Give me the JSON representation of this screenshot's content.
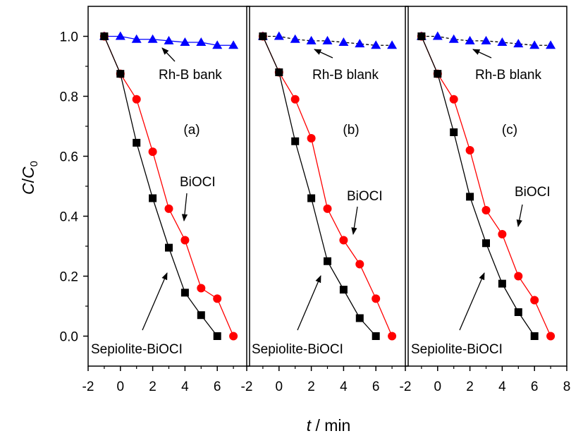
{
  "chart_data": [
    {
      "type": "line",
      "panel_label": "(a)",
      "x_ticks": [
        "-2",
        "0",
        "2",
        "4",
        "6"
      ],
      "xlim": [
        -2,
        8
      ],
      "ylim": [
        -0.1,
        1.1
      ],
      "series": [
        {
          "x": [
            -1,
            0,
            1,
            2,
            3,
            4,
            5,
            6,
            7
          ],
          "values": [
            1.0,
            1.0,
            0.99,
            0.99,
            0.985,
            0.98,
            0.98,
            0.97,
            0.97
          ],
          "color": "#0000ff",
          "marker": "triangle",
          "line": "solid"
        },
        {
          "x": [
            -1,
            0,
            1,
            2,
            3,
            4,
            5,
            6,
            7
          ],
          "values": [
            1.0,
            0.875,
            0.79,
            0.615,
            0.425,
            0.32,
            0.16,
            0.125,
            0.0
          ],
          "color": "#ff0000",
          "marker": "circle",
          "line": "solid"
        },
        {
          "x": [
            -1,
            0,
            1,
            2,
            3,
            4,
            5,
            6
          ],
          "values": [
            1.0,
            0.875,
            0.645,
            0.46,
            0.295,
            0.145,
            0.07,
            0.0
          ],
          "color": "#000000",
          "marker": "square",
          "line": "solid"
        }
      ],
      "annotations": {
        "blank": "Rh-B bank",
        "bioci": "BiOCI",
        "sepiolite": "Sepiolite-BiOCI"
      }
    },
    {
      "type": "line",
      "panel_label": "(b)",
      "x_ticks": [
        "-2",
        "0",
        "2",
        "4",
        "6"
      ],
      "xlim": [
        -2,
        8
      ],
      "ylim": [
        -0.1,
        1.1
      ],
      "series": [
        {
          "x": [
            -1,
            0,
            1,
            2,
            3,
            4,
            5,
            6,
            7
          ],
          "values": [
            1.0,
            1.0,
            0.99,
            0.985,
            0.985,
            0.98,
            0.975,
            0.97,
            0.97
          ],
          "color": "#0000ff",
          "marker": "triangle",
          "line": "dashed"
        },
        {
          "x": [
            -1,
            0,
            1,
            2,
            3,
            4,
            5,
            6,
            7
          ],
          "values": [
            1.0,
            0.88,
            0.79,
            0.66,
            0.425,
            0.32,
            0.24,
            0.125,
            0.0
          ],
          "color": "#ff0000",
          "marker": "circle",
          "line": "solid"
        },
        {
          "x": [
            -1,
            0,
            1,
            2,
            3,
            4,
            5,
            6
          ],
          "values": [
            1.0,
            0.88,
            0.65,
            0.46,
            0.25,
            0.155,
            0.06,
            0.0
          ],
          "color": "#000000",
          "marker": "square",
          "line": "solid"
        }
      ],
      "annotations": {
        "blank": "Rh-B blank",
        "bioci": "BiOCI",
        "sepiolite": "Sepiolite-BiOCI"
      }
    },
    {
      "type": "line",
      "panel_label": "(c)",
      "x_ticks": [
        "-2",
        "0",
        "2",
        "4",
        "6",
        "8"
      ],
      "xlim": [
        -2,
        8
      ],
      "ylim": [
        -0.1,
        1.1
      ],
      "series": [
        {
          "x": [
            -1,
            0,
            1,
            2,
            3,
            4,
            5,
            6,
            7
          ],
          "values": [
            1.0,
            1.0,
            0.99,
            0.985,
            0.985,
            0.98,
            0.975,
            0.97,
            0.97
          ],
          "color": "#0000ff",
          "marker": "triangle",
          "line": "dashed"
        },
        {
          "x": [
            -1,
            0,
            1,
            2,
            3,
            4,
            5,
            6,
            7
          ],
          "values": [
            1.0,
            0.875,
            0.79,
            0.62,
            0.42,
            0.34,
            0.2,
            0.12,
            0.0
          ],
          "color": "#ff0000",
          "marker": "circle",
          "line": "solid"
        },
        {
          "x": [
            -1,
            0,
            1,
            2,
            3,
            4,
            5,
            6
          ],
          "values": [
            1.0,
            0.875,
            0.68,
            0.465,
            0.31,
            0.175,
            0.08,
            0.0
          ],
          "color": "#000000",
          "marker": "square",
          "line": "solid"
        }
      ],
      "annotations": {
        "blank": "Rh-B blank",
        "bioci": "BiOCI",
        "sepiolite": "Sepiolite-BiOCI"
      }
    }
  ],
  "y_ticks": [
    "0.0",
    "0.2",
    "0.4",
    "0.6",
    "0.8",
    "1.0"
  ],
  "ylabel": {
    "c": "C",
    "slash": "/",
    "c0": "C",
    "sub": "0"
  },
  "xlabel": {
    "t": "t",
    "rest": " / min"
  }
}
